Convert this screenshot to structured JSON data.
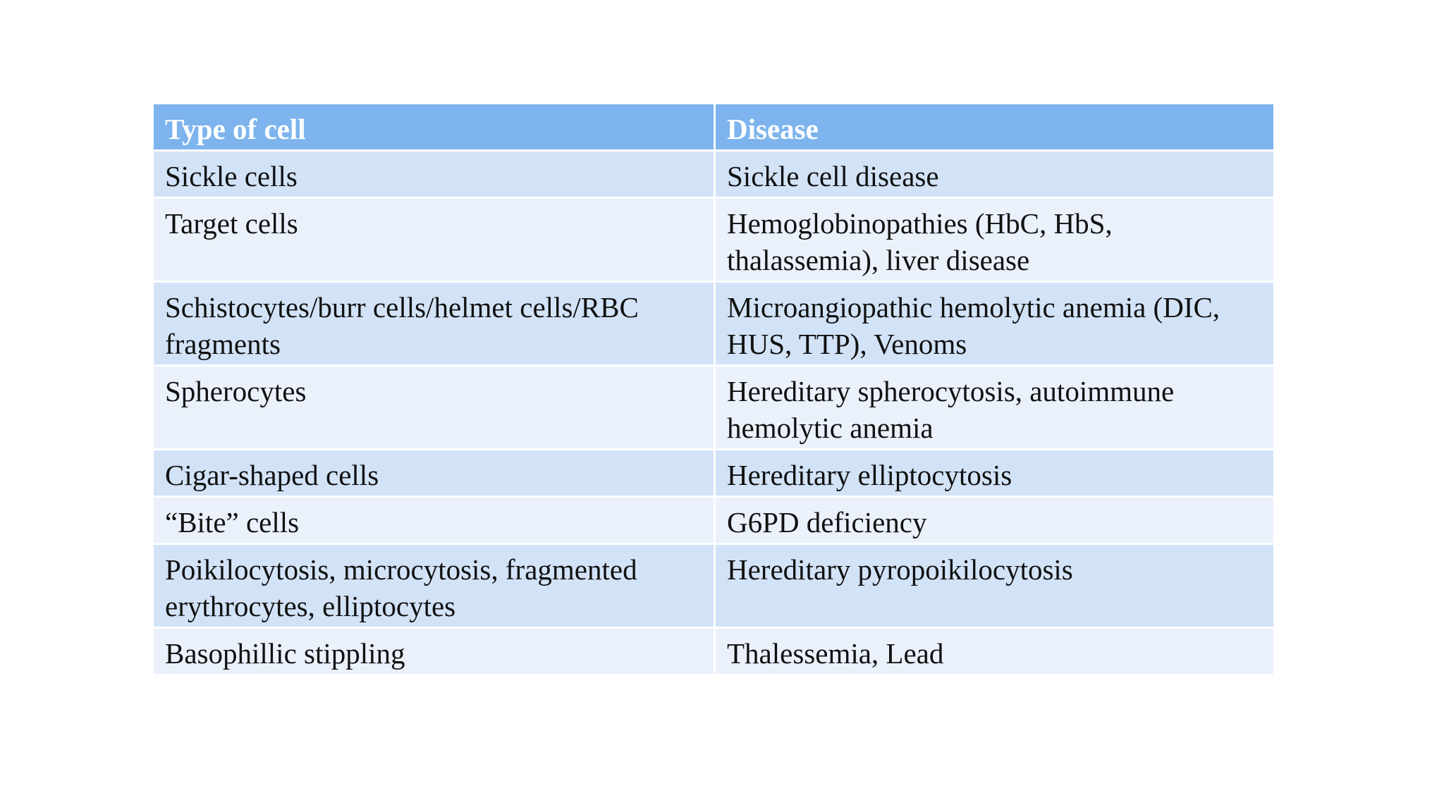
{
  "table": {
    "headers": [
      "Type of cell",
      "Disease"
    ],
    "rows": [
      {
        "cell": "Sickle cells",
        "disease": "Sickle cell disease"
      },
      {
        "cell": "Target cells",
        "disease": "Hemoglobinopathies (HbC, HbS, thalassemia), liver disease"
      },
      {
        "cell": "Schistocytes/burr cells/helmet cells/RBC fragments",
        "disease": "Microangiopathic hemolytic anemia (DIC, HUS, TTP), Venoms"
      },
      {
        "cell": "Spherocytes",
        "disease": "Hereditary spherocytosis, autoimmune hemolytic anemia"
      },
      {
        "cell": "Cigar-shaped cells",
        "disease": "Hereditary elliptocytosis"
      },
      {
        "cell": "“Bite” cells",
        "disease": "G6PD deficiency"
      },
      {
        "cell": "Poikilocytosis, microcytosis, fragmented erythrocytes, elliptocytes",
        "disease": "Hereditary pyropoikilocytosis"
      },
      {
        "cell": "Basophillic stippling",
        "disease": "Thalessemia, Lead"
      }
    ]
  },
  "colors": {
    "header_background": "#7db4ee",
    "header_text": "#ffffff",
    "row_odd_background": "#d3e3f7",
    "row_even_background": "#eaf1fb",
    "body_text": "#111111"
  }
}
